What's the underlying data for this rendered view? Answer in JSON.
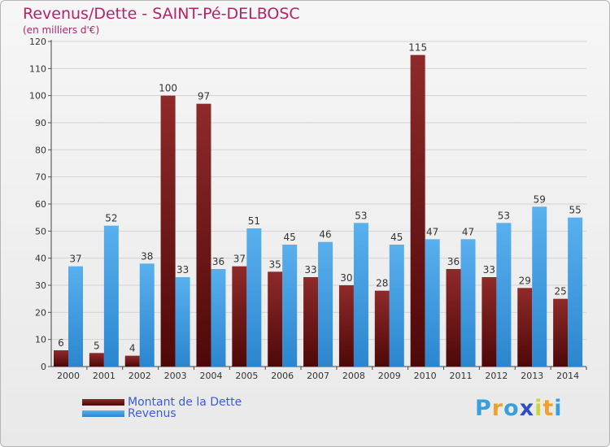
{
  "chart_data": {
    "type": "bar",
    "title": "Revenus/Dette - SAINT-Pé-DELBOSC",
    "subtitle": "(en milliers d'€)",
    "categories": [
      "2000",
      "2001",
      "2002",
      "2003",
      "2004",
      "2005",
      "2006",
      "2007",
      "2008",
      "2009",
      "2010",
      "2011",
      "2012",
      "2013",
      "2014"
    ],
    "series": [
      {
        "name": "Montant de la Dette",
        "color": "#7a1a1a",
        "values": [
          6,
          5,
          4,
          100,
          97,
          37,
          35,
          33,
          30,
          28,
          115,
          36,
          33,
          29,
          25
        ]
      },
      {
        "name": "Revenus",
        "color": "#3f9be3",
        "values": [
          37,
          52,
          38,
          33,
          36,
          51,
          45,
          46,
          53,
          45,
          47,
          47,
          53,
          59,
          55
        ]
      }
    ],
    "yticks": [
      0,
      10,
      20,
      30,
      40,
      50,
      60,
      70,
      80,
      90,
      100,
      110,
      120
    ],
    "ylim": [
      0,
      120
    ],
    "grid": true,
    "legend_position": "bottom-left"
  },
  "brand": {
    "letters": [
      "P",
      "r",
      "o",
      "x",
      "i",
      "t",
      "i"
    ],
    "colors": [
      "#3aa0d9",
      "#f0a12c",
      "#3aa0d9",
      "#2f4fbf",
      "#cfd43a",
      "#f0a12c",
      "#3aa0d9"
    ]
  }
}
